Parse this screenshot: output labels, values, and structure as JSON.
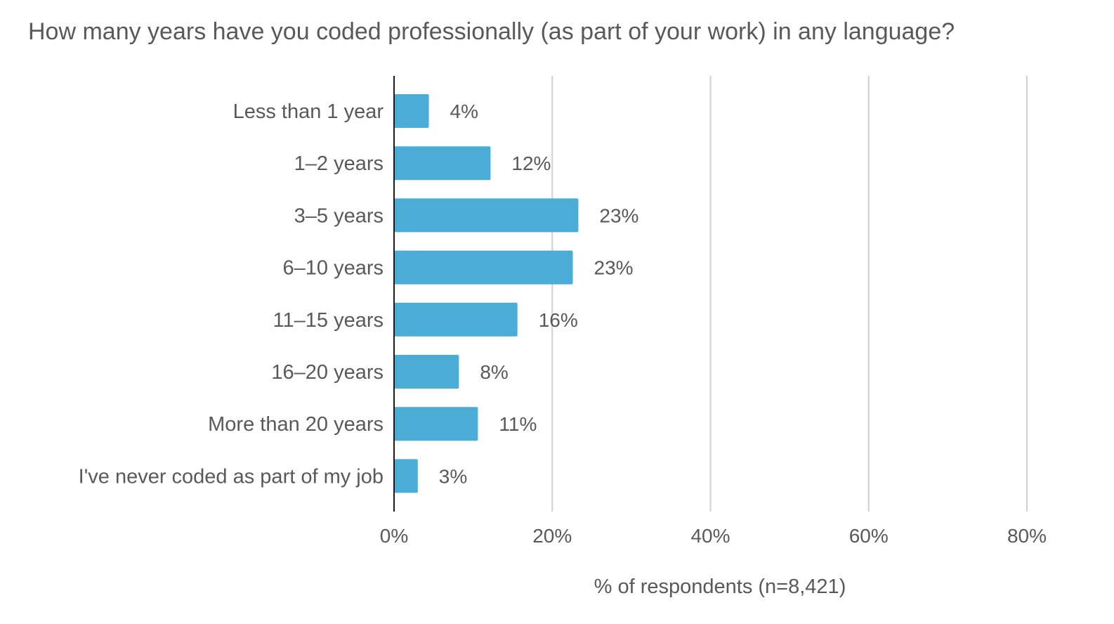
{
  "chart_data": {
    "type": "bar",
    "orientation": "horizontal",
    "title": "How many years have you coded professionally (as part of your work) in any language?",
    "xlabel": "% of respondents (n=8,421)",
    "ylabel": "",
    "categories": [
      "Less than 1 year",
      "1–2 years",
      "3–5 years",
      "6–10 years",
      "11–15 years",
      "16–20 years",
      "More than 20 years",
      "I've never coded as part of my job"
    ],
    "values": [
      4.4,
      12.2,
      23.3,
      22.6,
      15.6,
      8.2,
      10.6,
      3.0
    ],
    "value_labels": [
      "4%",
      "12%",
      "23%",
      "23%",
      "16%",
      "8%",
      "11%",
      "3%"
    ],
    "xlim": [
      0,
      80
    ],
    "x_ticks": [
      0,
      20,
      40,
      60,
      80
    ],
    "x_tick_labels": [
      "0%",
      "20%",
      "40%",
      "60%",
      "80%"
    ],
    "grid": true,
    "legend": "none",
    "colors": {
      "bar": "#4BACD6",
      "grid": "#D0D0D0",
      "axis": "#1A1A1A",
      "text": "#595959"
    }
  }
}
